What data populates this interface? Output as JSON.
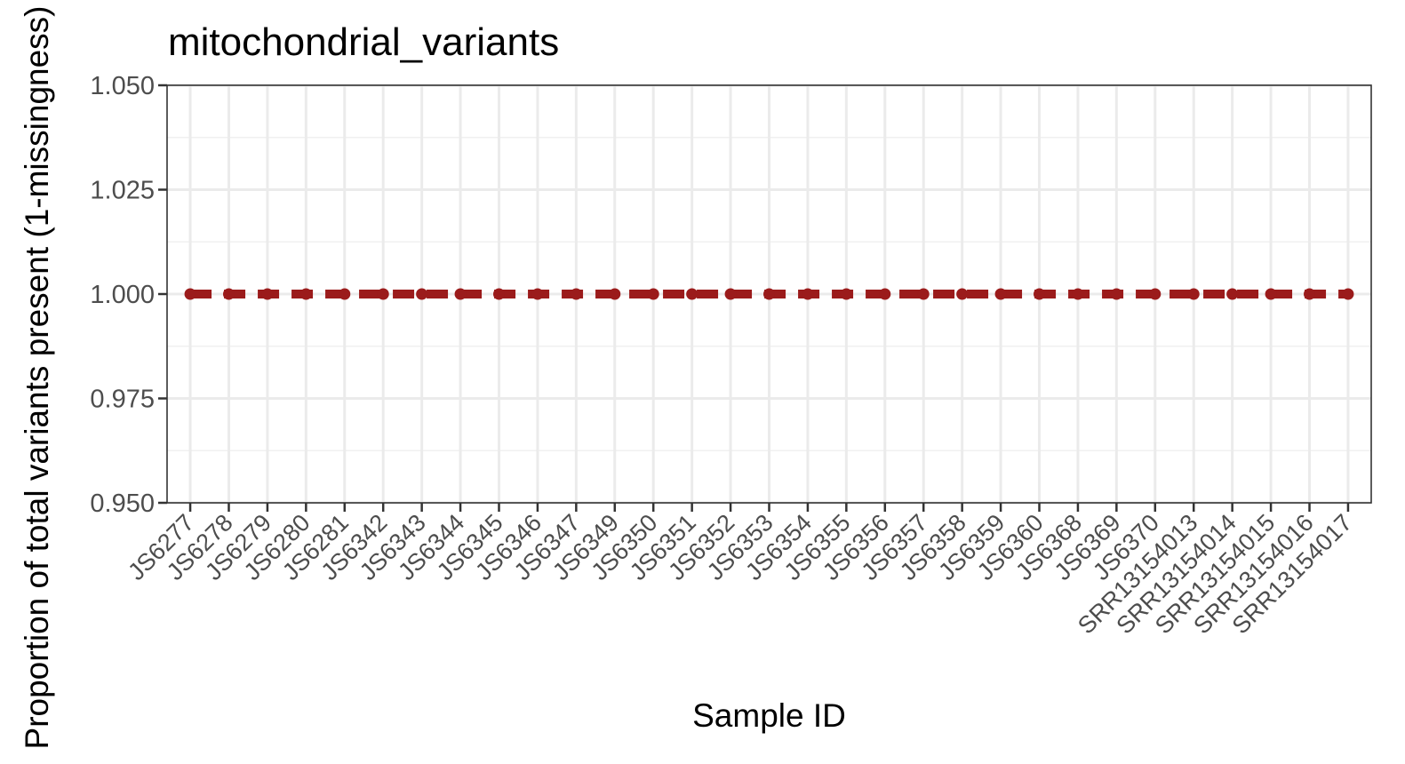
{
  "chart_data": {
    "type": "line",
    "title": "mitochondrial_variants",
    "xlabel": "Sample ID",
    "ylabel": "Proportion of total variants present (1-missingness)",
    "ylim": [
      0.95,
      1.05
    ],
    "yticks": [
      "0.950",
      "0.975",
      "1.000",
      "1.025",
      "1.050"
    ],
    "grid": true,
    "categories": [
      "JS6277",
      "JS6278",
      "JS6279",
      "JS6280",
      "JS6281",
      "JS6342",
      "JS6343",
      "JS6344",
      "JS6345",
      "JS6346",
      "JS6347",
      "JS6349",
      "JS6350",
      "JS6351",
      "JS6352",
      "JS6353",
      "JS6354",
      "JS6355",
      "JS6356",
      "JS6357",
      "JS6358",
      "JS6359",
      "JS6360",
      "JS6368",
      "JS6369",
      "JS6370",
      "SRR13154013",
      "SRR13154014",
      "SRR13154015",
      "SRR13154016",
      "SRR13154017"
    ],
    "series": [
      {
        "values": [
          1,
          1,
          1,
          1,
          1,
          1,
          1,
          1,
          1,
          1,
          1,
          1,
          1,
          1,
          1,
          1,
          1,
          1,
          1,
          1,
          1,
          1,
          1,
          1,
          1,
          1,
          1,
          1,
          1,
          1,
          1
        ],
        "color": "#9b1b1b",
        "line_style": "dashed",
        "markers": true
      }
    ]
  }
}
